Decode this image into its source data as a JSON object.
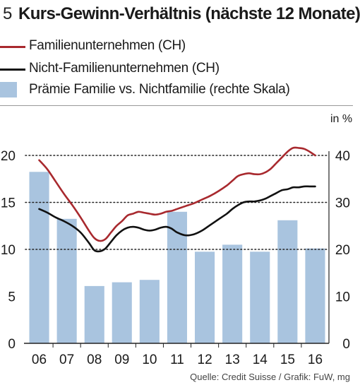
{
  "header": {
    "figure_number": "5",
    "title": "Kurs-Gewinn-Verhältnis (nächste 12 Monate)"
  },
  "legend": [
    {
      "label": "Familienunternehmen (CH)",
      "color": "#a8292e",
      "kind": "line"
    },
    {
      "label": "Nicht-Familienunternehmen (CH)",
      "color": "#111111",
      "kind": "line"
    },
    {
      "label": "Prämie Familie vs. Nichtfamilie (rechte Skala)",
      "color": "#a9c4df",
      "kind": "bar"
    }
  ],
  "unit_label": "in %",
  "source": "Quelle: Credit Suisse / Grafik: FuW, mg",
  "chart_data": {
    "type": "bar+line",
    "categories": [
      "06",
      "07",
      "08",
      "09",
      "10",
      "11",
      "12",
      "13",
      "14",
      "15",
      "16"
    ],
    "left_axis": {
      "range": [
        0,
        20
      ],
      "ticks": [
        "0",
        "5",
        "10",
        "15",
        "20"
      ]
    },
    "right_axis": {
      "range": [
        0,
        40
      ],
      "ticks": [
        "0",
        "10",
        "20",
        "30",
        "40"
      ]
    },
    "grid": "dotted horizontal at 20, 15 and 10",
    "bars": {
      "name": "Prämie Familie vs. Nichtfamilie (rechte Skala)",
      "axis": "right",
      "color": "#a9c4df",
      "values": [
        36.5,
        26.5,
        12.2,
        13.0,
        13.5,
        28.0,
        19.5,
        21.0,
        19.5,
        26.2,
        20.2
      ]
    },
    "lines": [
      {
        "name": "Familienunternehmen (CH)",
        "axis": "left",
        "color": "#a8292e",
        "x": [
          6.0,
          6.3,
          6.6,
          6.9,
          7.2,
          7.5,
          7.8,
          8.0,
          8.2,
          8.4,
          8.6,
          8.8,
          9.0,
          9.2,
          9.4,
          9.6,
          9.8,
          10.0,
          10.2,
          10.4,
          10.6,
          10.8,
          11.0,
          11.3,
          11.6,
          11.9,
          12.2,
          12.5,
          12.8,
          13.0,
          13.2,
          13.4,
          13.6,
          13.8,
          14.0,
          14.2,
          14.4,
          14.6,
          14.8,
          15.0,
          15.2,
          15.4,
          15.6,
          15.8,
          16.0
        ],
        "y": [
          19.5,
          18.5,
          17.2,
          15.9,
          14.7,
          13.4,
          12.0,
          11.2,
          10.9,
          11.1,
          11.8,
          12.5,
          13.0,
          13.6,
          13.8,
          14.0,
          13.9,
          13.8,
          13.7,
          13.8,
          14.0,
          14.1,
          14.3,
          14.6,
          14.9,
          15.3,
          15.7,
          16.2,
          16.8,
          17.3,
          17.8,
          18.0,
          18.1,
          18.0,
          18.0,
          18.2,
          18.6,
          19.2,
          19.8,
          20.4,
          20.8,
          20.8,
          20.7,
          20.4,
          20.0
        ]
      },
      {
        "name": "Nicht-Familienunternehmen (CH)",
        "axis": "left",
        "color": "#111111",
        "x": [
          6.0,
          6.3,
          6.6,
          6.9,
          7.2,
          7.5,
          7.8,
          8.0,
          8.2,
          8.4,
          8.6,
          8.8,
          9.0,
          9.2,
          9.4,
          9.6,
          9.8,
          10.0,
          10.2,
          10.4,
          10.6,
          10.8,
          11.0,
          11.3,
          11.6,
          11.9,
          12.2,
          12.5,
          12.8,
          13.0,
          13.2,
          13.4,
          13.6,
          13.8,
          14.0,
          14.2,
          14.4,
          14.6,
          14.8,
          15.0,
          15.2,
          15.4,
          15.6,
          15.8,
          16.0
        ],
        "y": [
          14.3,
          13.9,
          13.4,
          13.0,
          12.5,
          11.8,
          10.7,
          9.9,
          9.8,
          10.1,
          10.8,
          11.5,
          12.0,
          12.3,
          12.4,
          12.3,
          12.1,
          12.0,
          12.1,
          12.3,
          12.4,
          12.2,
          11.8,
          11.5,
          11.6,
          12.0,
          12.6,
          13.2,
          13.8,
          14.3,
          14.7,
          15.0,
          15.1,
          15.1,
          15.2,
          15.4,
          15.7,
          16.0,
          16.3,
          16.4,
          16.6,
          16.6,
          16.7,
          16.7,
          16.7
        ]
      }
    ]
  }
}
